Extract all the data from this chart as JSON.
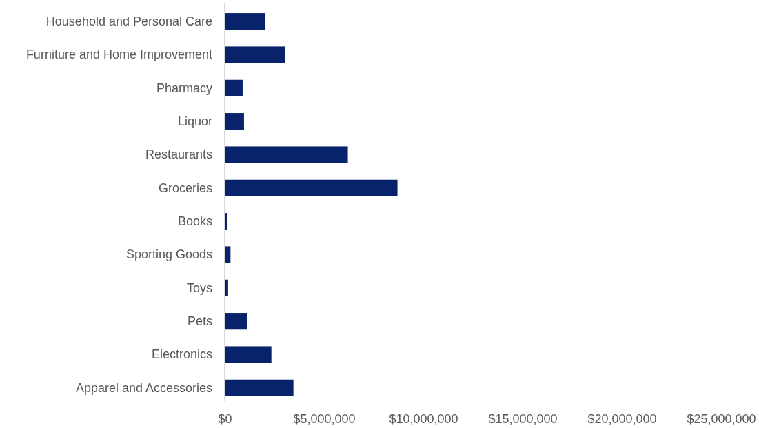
{
  "chart_data": {
    "type": "bar",
    "orientation": "horizontal",
    "categories": [
      "Household and Personal Care",
      "Furniture and Home Improvement",
      "Pharmacy",
      "Liquor",
      "Restaurants",
      "Groceries",
      "Books",
      "Sporting Goods",
      "Toys",
      "Pets",
      "Electronics",
      "Apparel and Accessories"
    ],
    "values": [
      2050000,
      3030000,
      900000,
      970000,
      6200000,
      8700000,
      140000,
      290000,
      170000,
      1130000,
      2350000,
      3460000
    ],
    "color": "#06236b",
    "xlim": [
      0,
      25000000
    ],
    "xticks": [
      {
        "value": 0,
        "label": "$0"
      },
      {
        "value": 5000000,
        "label": "$5,000,000"
      },
      {
        "value": 10000000,
        "label": "$10,000,000"
      },
      {
        "value": 15000000,
        "label": "$15,000,000"
      },
      {
        "value": 20000000,
        "label": "$20,000,000"
      },
      {
        "value": 25000000,
        "label": "$25,000,000"
      }
    ],
    "grid": false
  }
}
